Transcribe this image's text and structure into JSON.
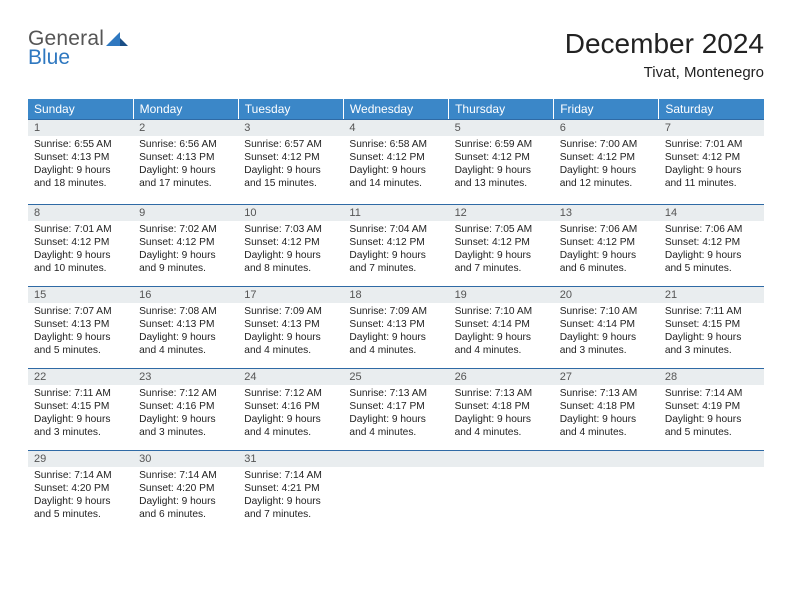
{
  "brand": {
    "line1": "General",
    "line2": "Blue"
  },
  "colors": {
    "header_bg": "#3b87c8",
    "header_fg": "#ffffff",
    "daynum_bg": "#e9edef",
    "daynum_border_top": "#2f6aa5",
    "brand_blue": "#2f78c0",
    "brand_gray": "#555555",
    "page_bg": "#ffffff",
    "text": "#222222"
  },
  "title": "December 2024",
  "location": "Tivat, Montenegro",
  "weekdays": [
    "Sunday",
    "Monday",
    "Tuesday",
    "Wednesday",
    "Thursday",
    "Friday",
    "Saturday"
  ],
  "weeks": [
    [
      {
        "n": "1",
        "sr": "6:55 AM",
        "ss": "4:13 PM",
        "dl": "9 hours and 18 minutes."
      },
      {
        "n": "2",
        "sr": "6:56 AM",
        "ss": "4:13 PM",
        "dl": "9 hours and 17 minutes."
      },
      {
        "n": "3",
        "sr": "6:57 AM",
        "ss": "4:12 PM",
        "dl": "9 hours and 15 minutes."
      },
      {
        "n": "4",
        "sr": "6:58 AM",
        "ss": "4:12 PM",
        "dl": "9 hours and 14 minutes."
      },
      {
        "n": "5",
        "sr": "6:59 AM",
        "ss": "4:12 PM",
        "dl": "9 hours and 13 minutes."
      },
      {
        "n": "6",
        "sr": "7:00 AM",
        "ss": "4:12 PM",
        "dl": "9 hours and 12 minutes."
      },
      {
        "n": "7",
        "sr": "7:01 AM",
        "ss": "4:12 PM",
        "dl": "9 hours and 11 minutes."
      }
    ],
    [
      {
        "n": "8",
        "sr": "7:01 AM",
        "ss": "4:12 PM",
        "dl": "9 hours and 10 minutes."
      },
      {
        "n": "9",
        "sr": "7:02 AM",
        "ss": "4:12 PM",
        "dl": "9 hours and 9 minutes."
      },
      {
        "n": "10",
        "sr": "7:03 AM",
        "ss": "4:12 PM",
        "dl": "9 hours and 8 minutes."
      },
      {
        "n": "11",
        "sr": "7:04 AM",
        "ss": "4:12 PM",
        "dl": "9 hours and 7 minutes."
      },
      {
        "n": "12",
        "sr": "7:05 AM",
        "ss": "4:12 PM",
        "dl": "9 hours and 7 minutes."
      },
      {
        "n": "13",
        "sr": "7:06 AM",
        "ss": "4:12 PM",
        "dl": "9 hours and 6 minutes."
      },
      {
        "n": "14",
        "sr": "7:06 AM",
        "ss": "4:12 PM",
        "dl": "9 hours and 5 minutes."
      }
    ],
    [
      {
        "n": "15",
        "sr": "7:07 AM",
        "ss": "4:13 PM",
        "dl": "9 hours and 5 minutes."
      },
      {
        "n": "16",
        "sr": "7:08 AM",
        "ss": "4:13 PM",
        "dl": "9 hours and 4 minutes."
      },
      {
        "n": "17",
        "sr": "7:09 AM",
        "ss": "4:13 PM",
        "dl": "9 hours and 4 minutes."
      },
      {
        "n": "18",
        "sr": "7:09 AM",
        "ss": "4:13 PM",
        "dl": "9 hours and 4 minutes."
      },
      {
        "n": "19",
        "sr": "7:10 AM",
        "ss": "4:14 PM",
        "dl": "9 hours and 4 minutes."
      },
      {
        "n": "20",
        "sr": "7:10 AM",
        "ss": "4:14 PM",
        "dl": "9 hours and 3 minutes."
      },
      {
        "n": "21",
        "sr": "7:11 AM",
        "ss": "4:15 PM",
        "dl": "9 hours and 3 minutes."
      }
    ],
    [
      {
        "n": "22",
        "sr": "7:11 AM",
        "ss": "4:15 PM",
        "dl": "9 hours and 3 minutes."
      },
      {
        "n": "23",
        "sr": "7:12 AM",
        "ss": "4:16 PM",
        "dl": "9 hours and 3 minutes."
      },
      {
        "n": "24",
        "sr": "7:12 AM",
        "ss": "4:16 PM",
        "dl": "9 hours and 4 minutes."
      },
      {
        "n": "25",
        "sr": "7:13 AM",
        "ss": "4:17 PM",
        "dl": "9 hours and 4 minutes."
      },
      {
        "n": "26",
        "sr": "7:13 AM",
        "ss": "4:18 PM",
        "dl": "9 hours and 4 minutes."
      },
      {
        "n": "27",
        "sr": "7:13 AM",
        "ss": "4:18 PM",
        "dl": "9 hours and 4 minutes."
      },
      {
        "n": "28",
        "sr": "7:14 AM",
        "ss": "4:19 PM",
        "dl": "9 hours and 5 minutes."
      }
    ],
    [
      {
        "n": "29",
        "sr": "7:14 AM",
        "ss": "4:20 PM",
        "dl": "9 hours and 5 minutes."
      },
      {
        "n": "30",
        "sr": "7:14 AM",
        "ss": "4:20 PM",
        "dl": "9 hours and 6 minutes."
      },
      {
        "n": "31",
        "sr": "7:14 AM",
        "ss": "4:21 PM",
        "dl": "9 hours and 7 minutes."
      },
      {
        "empty": true
      },
      {
        "empty": true
      },
      {
        "empty": true
      },
      {
        "empty": true
      }
    ]
  ],
  "labels": {
    "sunrise": "Sunrise: ",
    "sunset": "Sunset: ",
    "daylight": "Daylight: "
  }
}
